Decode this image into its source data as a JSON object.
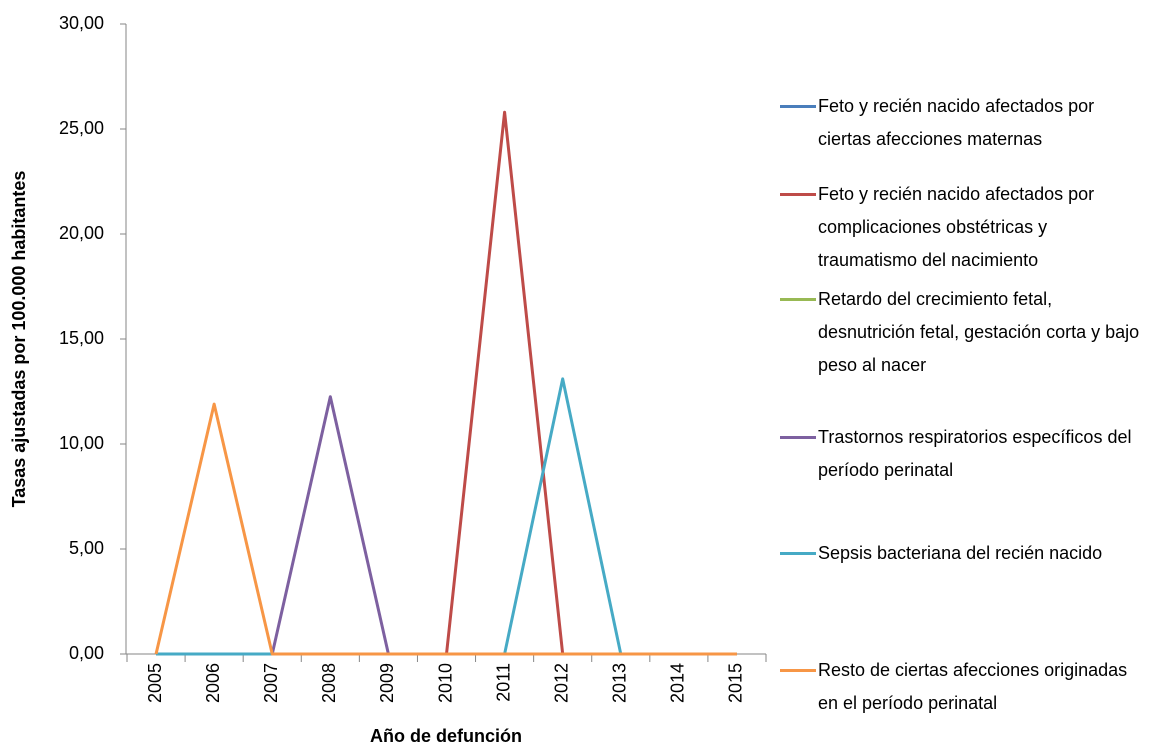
{
  "chart_data": {
    "type": "line",
    "y_label": "Tasas ajustadas por 100.000 habitantes",
    "x_label": "Año de defunción",
    "categories": [
      "2005",
      "2006",
      "2007",
      "2008",
      "2009",
      "2010",
      "2011",
      "2012",
      "2013",
      "2014",
      "2015"
    ],
    "series": [
      {
        "name": "Feto y recién nacido afectados por ciertas afecciones maternas",
        "color": "#4a7ebb",
        "values": [
          0,
          0,
          0,
          0,
          0,
          0,
          0,
          0,
          0,
          0,
          0
        ]
      },
      {
        "name": "Feto y recién nacido afectados por complicaciones obstétricas y traumatismo del nacimiento",
        "color": "#be4b48",
        "values": [
          0,
          0,
          0,
          0,
          0,
          0,
          25.8,
          0,
          0,
          0,
          0
        ]
      },
      {
        "name": "Retardo del crecimiento fetal, desnutrición fetal, gestación corta y bajo peso al nacer",
        "color": "#98b954",
        "values": [
          0,
          0,
          0,
          0,
          0,
          0,
          0,
          0,
          0,
          0,
          0
        ]
      },
      {
        "name": "Trastornos respiratorios específicos del período perinatal",
        "color": "#7d60a0",
        "values": [
          0,
          0,
          0,
          12.25,
          0,
          0,
          0,
          0,
          0,
          0,
          0
        ]
      },
      {
        "name": "Sepsis bacteriana del recién nacido",
        "color": "#46aac5",
        "values": [
          0,
          0,
          0,
          0,
          0,
          0,
          0,
          13.1,
          0,
          0,
          0
        ]
      },
      {
        "name": "Resto de ciertas afecciones originadas en el período perinatal",
        "color": "#f79646",
        "values": [
          0,
          11.9,
          0,
          0,
          0,
          0,
          0,
          0,
          0,
          0,
          0
        ]
      }
    ],
    "ylim": [
      0,
      30
    ],
    "yticks": [
      {
        "value": 0,
        "label": "0,00"
      },
      {
        "value": 5,
        "label": "5,00"
      },
      {
        "value": 10,
        "label": "10,00"
      },
      {
        "value": 15,
        "label": "15,00"
      },
      {
        "value": 20,
        "label": "20,00"
      },
      {
        "value": 25,
        "label": "25,00"
      },
      {
        "value": 30,
        "label": "30,00"
      }
    ],
    "legend": "right"
  }
}
